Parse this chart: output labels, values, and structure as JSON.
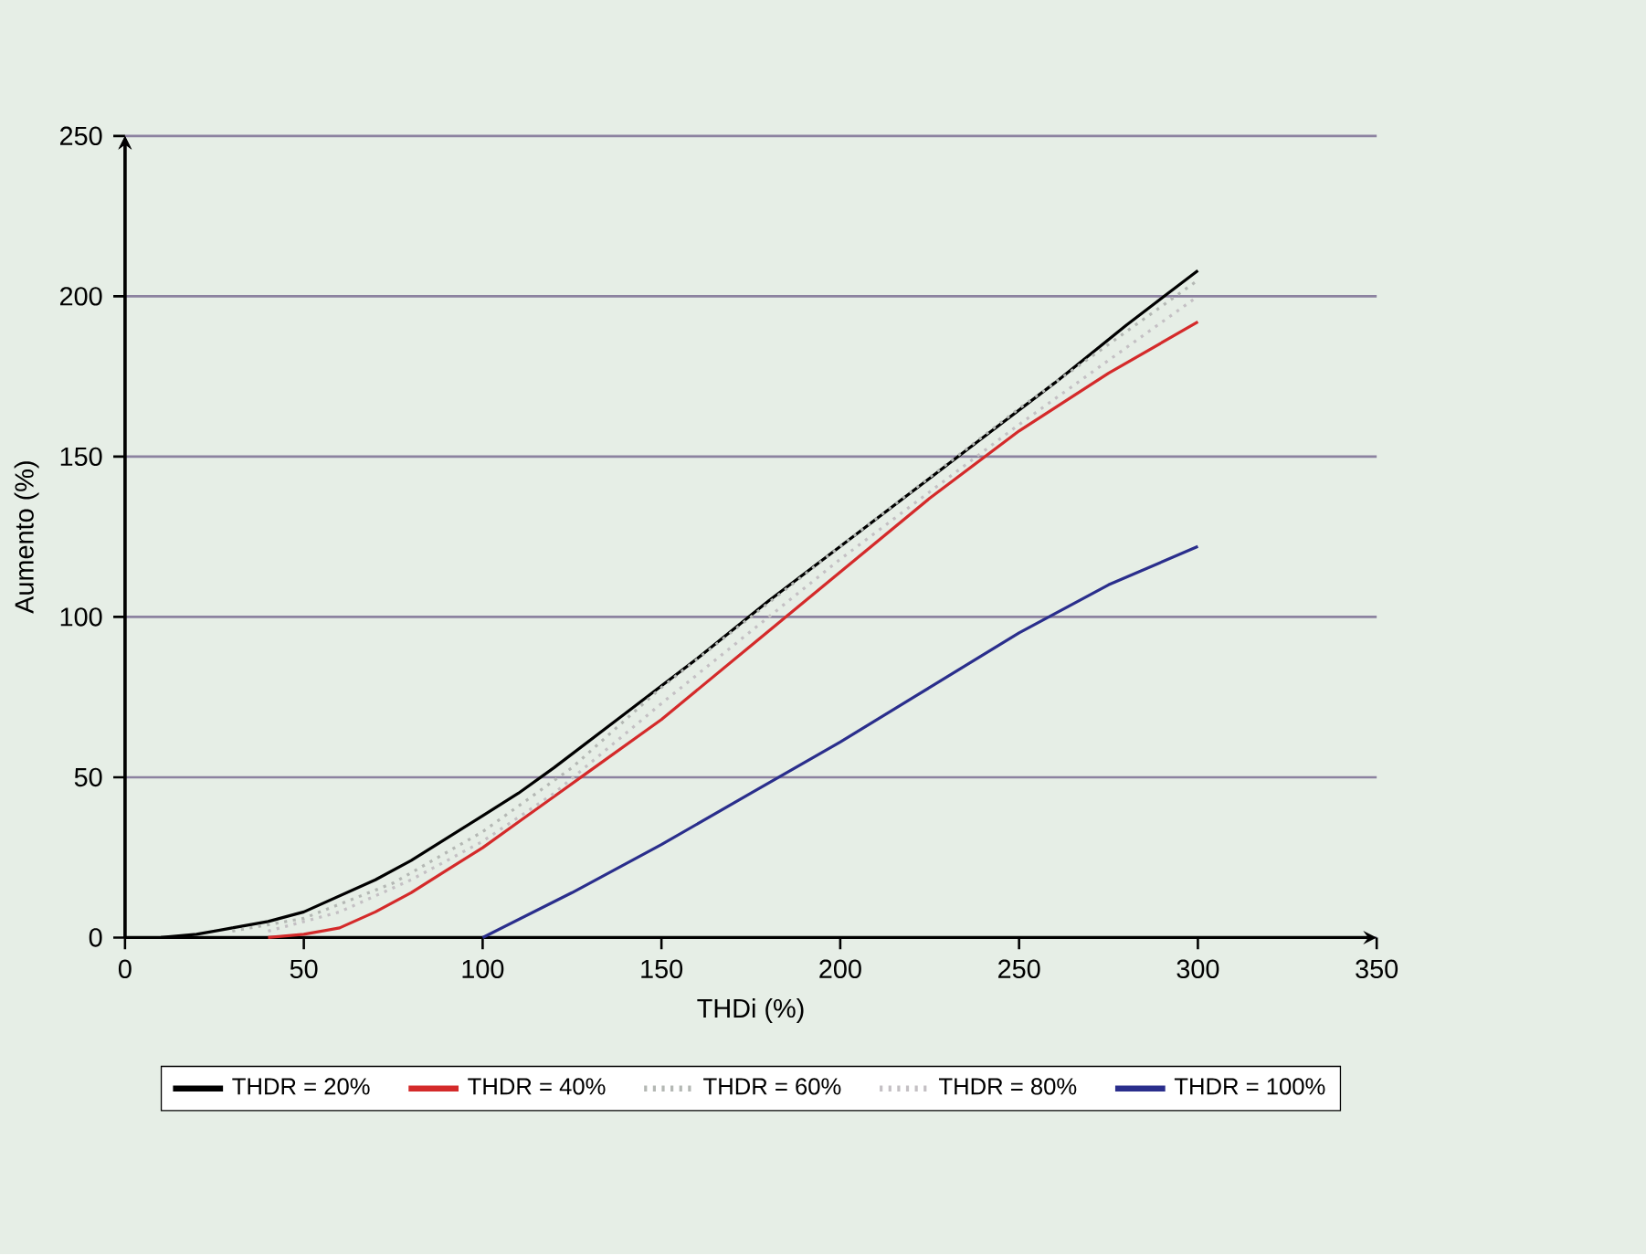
{
  "chart_data": {
    "type": "line",
    "xlabel": "THDi (%)",
    "ylabel": "Aumento (%)",
    "xlim": [
      0,
      350
    ],
    "ylim": [
      0,
      250
    ],
    "xticks": [
      0,
      50,
      100,
      150,
      200,
      250,
      300,
      350
    ],
    "yticks": [
      0,
      50,
      100,
      150,
      200,
      250
    ],
    "grid": "y",
    "legend": "bottom",
    "marker": "none",
    "series": [
      {
        "name": "THDR = 20%",
        "color": "#000000",
        "x": [
          10,
          20,
          30,
          40,
          50,
          60,
          70,
          80,
          90,
          100,
          110,
          120,
          140,
          160,
          180,
          200,
          220,
          240,
          260,
          280,
          300
        ],
        "values": [
          0,
          1,
          3,
          5,
          8,
          13,
          18,
          24,
          31,
          38,
          45,
          53,
          70,
          87,
          105,
          122,
          139,
          156,
          173,
          191,
          208
        ]
      },
      {
        "name": "THDR = 40%",
        "color": "#d42a2a",
        "x": [
          40,
          50,
          60,
          70,
          80,
          90,
          100,
          110,
          120,
          130,
          150,
          175,
          200,
          225,
          250,
          275,
          300
        ],
        "values": [
          0,
          1,
          3,
          8,
          14,
          21,
          28,
          36,
          44,
          52,
          68,
          91,
          114,
          137,
          158,
          176,
          192
        ]
      },
      {
        "name": "THDR = 60%",
        "color": "#b4b8b4",
        "line_style": "dotted",
        "x": [
          30,
          50,
          75,
          100,
          125,
          150,
          200,
          250,
          300
        ],
        "values": [
          2,
          6,
          17,
          33,
          53,
          78,
          122,
          165,
          205
        ]
      },
      {
        "name": "THDR = 80%",
        "color": "#c4c0c4",
        "line_style": "dotted",
        "x": [
          40,
          60,
          80,
          100,
          120,
          150,
          200,
          250,
          300
        ],
        "values": [
          2,
          8,
          18,
          30,
          45,
          73,
          118,
          160,
          200
        ]
      },
      {
        "name": "THDR = 100%",
        "color": "#2a2e8c",
        "x": [
          100,
          125,
          150,
          175,
          200,
          225,
          250,
          275,
          300
        ],
        "values": [
          0,
          14,
          29,
          45,
          61,
          78,
          95,
          110,
          122
        ]
      }
    ]
  }
}
